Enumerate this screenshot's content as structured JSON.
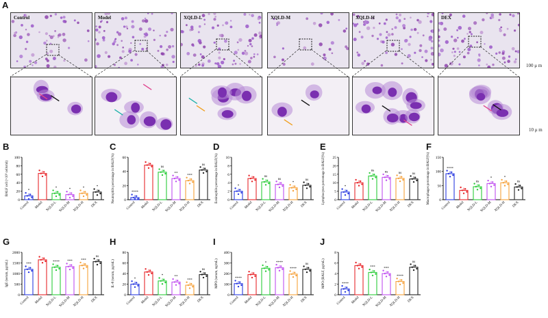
{
  "figure": {
    "panel_letters": [
      "A",
      "B",
      "C",
      "D",
      "E",
      "F",
      "G",
      "H",
      "I",
      "J"
    ],
    "micro_top_labels": [
      "Control",
      "Model",
      "XQLD-L",
      "XQLD-M",
      "XQLD-H",
      "DEX"
    ],
    "scale_top": "100 μ m",
    "scale_bottom": "10 μ m"
  },
  "colors": {
    "Control": "#2b3be0",
    "Model": "#e8262a",
    "XQLD-L": "#2bcc3a",
    "XQLD-M": "#c04ff0",
    "XQLD-H": "#f6a13a",
    "DEX": "#222222",
    "cell_nucleus": "#7a2fb0",
    "cell_stain": "#b78ad6",
    "bg_top": "#e9e4ef",
    "bg_bottom": "#f3eff5"
  },
  "chart_data": [
    {
      "panel": "B",
      "type": "bar",
      "ylabel": "BALF cell (×10⁵ cells/ml)",
      "categories": [
        "Control",
        "Model",
        "XQLD-L",
        "XQLD-M",
        "XQLD-H",
        "DEX"
      ],
      "values": [
        9,
        62,
        15,
        12,
        15,
        18
      ],
      "ylim": [
        0,
        100
      ],
      "yticks": [
        "0",
        "20",
        "40",
        "60",
        "80",
        "100"
      ],
      "sig": [
        "*",
        "",
        "*",
        "*",
        "*",
        "*"
      ]
    },
    {
      "panel": "C",
      "type": "bar",
      "ylabel": "Neutrophils percentage in BALF(%)",
      "categories": [
        "Control",
        "Model",
        "XQLD-L",
        "XQLD-M",
        "XQLD-H",
        "DEX"
      ],
      "values": [
        3,
        49,
        39,
        30,
        27,
        42
      ],
      "ylim": [
        0,
        60
      ],
      "yticks": [
        "0",
        "20",
        "40",
        "60"
      ],
      "sig": [
        "****",
        "",
        "ns",
        "**",
        "***",
        "ns"
      ]
    },
    {
      "panel": "D",
      "type": "bar",
      "ylabel": "Eosinophils percentage in BALF(%)",
      "categories": [
        "Control",
        "Model",
        "XQLD-L",
        "XQLD-M",
        "XQLD-H",
        "DEX"
      ],
      "values": [
        2,
        5,
        4.2,
        3.6,
        2.8,
        3.4
      ],
      "ylim": [
        0,
        10
      ],
      "yticks": [
        "0",
        "2",
        "4",
        "6",
        "8",
        "10"
      ],
      "sig": [
        "*",
        "",
        "ns",
        "ns",
        "*",
        "ns"
      ]
    },
    {
      "panel": "E",
      "type": "bar",
      "ylabel": "Lymphocytes percentage in BALF(%)",
      "categories": [
        "Control",
        "Model",
        "XQLD-L",
        "XQLD-M",
        "XQLD-H",
        "DEX"
      ],
      "values": [
        4.5,
        10,
        14,
        13.2,
        12.6,
        12.2
      ],
      "ylim": [
        0,
        25
      ],
      "yticks": [
        "0",
        "5",
        "10",
        "15",
        "20",
        "25"
      ],
      "sig": [
        "*",
        "",
        "ns",
        "ns",
        "ns",
        "ns"
      ]
    },
    {
      "panel": "F",
      "type": "bar",
      "ylabel": "Macrophages percentage in BALF(%)",
      "categories": [
        "Control",
        "Model",
        "XQLD-L",
        "XQLD-M",
        "XQLD-H",
        "DEX"
      ],
      "values": [
        92,
        33,
        46,
        57,
        60,
        45
      ],
      "ylim": [
        0,
        150
      ],
      "yticks": [
        "0",
        "50",
        "100",
        "150"
      ],
      "sig": [
        "****",
        "",
        "ns",
        "*",
        "*",
        "ns"
      ]
    },
    {
      "panel": "G",
      "type": "bar",
      "ylabel": "IgE (serum, pg/mL)",
      "categories": [
        "Control",
        "Model",
        "XQLD-L",
        "XQLD-M",
        "XQLD-H",
        "DEX"
      ],
      "values": [
        1200,
        1650,
        1300,
        1330,
        1380,
        1560
      ],
      "ylim": [
        0,
        2000
      ],
      "yticks": [
        "0",
        "500",
        "1000",
        "1500",
        "2000"
      ],
      "sig": [
        "***",
        "",
        "****",
        "***",
        "***",
        "ns"
      ]
    },
    {
      "panel": "H",
      "type": "bar",
      "ylabel": "IL-8 (serum, pg/mL)",
      "categories": [
        "Control",
        "Model",
        "XQLD-L",
        "XQLD-M",
        "XQLD-H",
        "DEX"
      ],
      "values": [
        20,
        43,
        26,
        24,
        18,
        38
      ],
      "ylim": [
        0,
        80
      ],
      "yticks": [
        "0",
        "20",
        "40",
        "60",
        "80"
      ],
      "sig": [
        "*",
        "",
        "*",
        "**",
        "***",
        "ns"
      ]
    },
    {
      "panel": "I",
      "type": "bar",
      "ylabel": "MPO (serum, ng/mL)",
      "categories": [
        "Control",
        "Model",
        "XQLD-L",
        "XQLD-M",
        "XQLD-H",
        "DEX"
      ],
      "values": [
        105,
        190,
        250,
        255,
        195,
        240
      ],
      "ylim": [
        0,
        400
      ],
      "yticks": [
        "0",
        "100",
        "200",
        "300",
        "400"
      ],
      "sig": [
        "****",
        "",
        "*",
        "****",
        "****",
        "ns"
      ]
    },
    {
      "panel": "J",
      "type": "bar",
      "ylabel": "MPO (BALF, pg/mL)",
      "categories": [
        "Control",
        "Model",
        "XQLD-L",
        "XQLD-M",
        "XQLD-H",
        "DEX"
      ],
      "values": [
        1.1,
        5.5,
        4.2,
        4.0,
        2.5,
        5.2
      ],
      "ylim": [
        0,
        8
      ],
      "yticks": [
        "0",
        "2",
        "4",
        "6",
        "8"
      ],
      "sig": [
        "****",
        "",
        "***",
        "***",
        "****",
        "ns"
      ]
    }
  ]
}
